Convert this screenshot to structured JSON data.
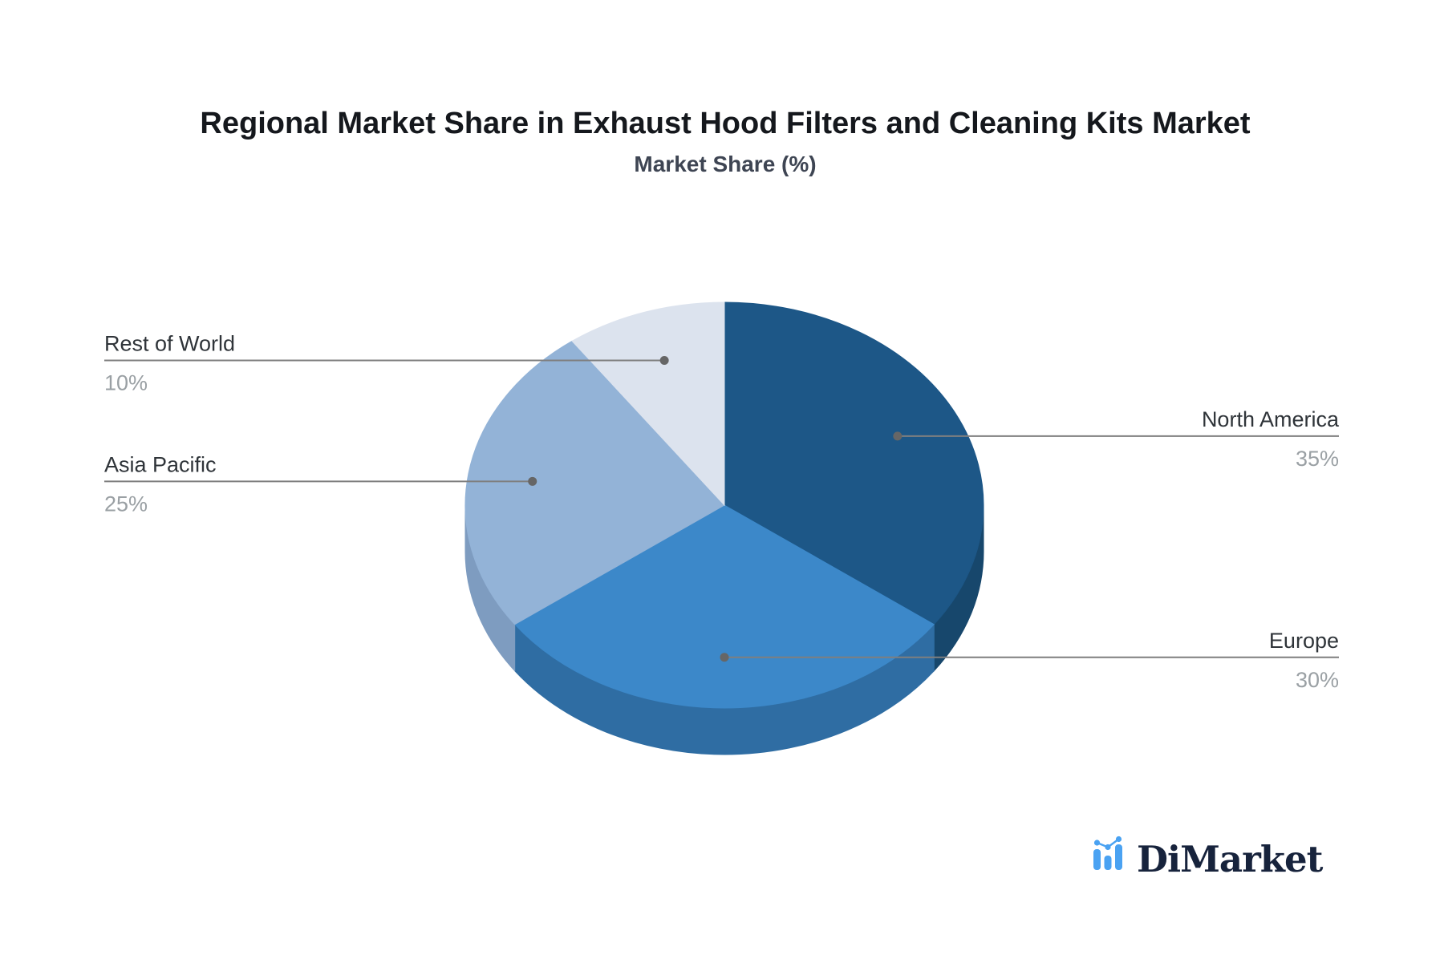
{
  "chart_data": {
    "type": "pie",
    "title": "Regional Market Share in Exhaust Hood Filters and Cleaning Kits Market",
    "subtitle": "Market Share (%)",
    "unit": "%",
    "direction": "clockwise",
    "start_angle_deg": 0,
    "grid": false,
    "legend_position": "leader-line-labels",
    "categories": [
      "North America",
      "Europe",
      "Asia Pacific",
      "Rest of World"
    ],
    "values": [
      35,
      30,
      25,
      10
    ],
    "slices": [
      {
        "label": "North America",
        "value": 35,
        "pct_text": "35%",
        "side": "right",
        "color_top": "#1d5787",
        "color_side": "#17476c"
      },
      {
        "label": "Europe",
        "value": 30,
        "pct_text": "30%",
        "side": "right",
        "color_top": "#3c88c9",
        "color_side": "#2f6da3"
      },
      {
        "label": "Asia Pacific",
        "value": 25,
        "pct_text": "25%",
        "side": "left",
        "color_top": "#93b3d7",
        "color_side": "#7e9cc0"
      },
      {
        "label": "Rest of World",
        "value": 10,
        "pct_text": "10%",
        "side": "left",
        "color_top": "#dce3ee",
        "color_side": "#c2cdde"
      }
    ]
  },
  "logo": {
    "text": "DiMarket",
    "icon": "bar-line-chart-icon",
    "accent_color": "#4aa2f2",
    "text_color": "#17233c"
  },
  "colors": {
    "background": "#ffffff",
    "title": "#15181d",
    "subtitle": "#3e4553",
    "label_text": "#2f3439",
    "pct_text": "#9aa0a4",
    "leader_line": "#7f7f7f",
    "leader_dot": "#666666"
  }
}
